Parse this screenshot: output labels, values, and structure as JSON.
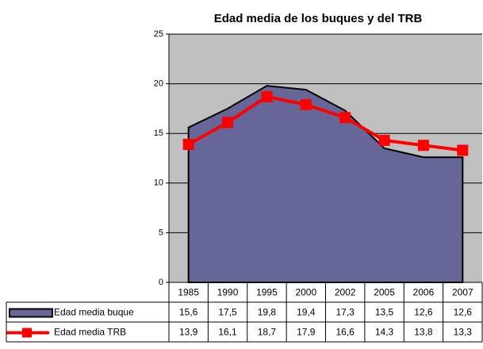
{
  "chart_data": {
    "type": "area",
    "title": "Edad media de los buques y del TRB",
    "categories": [
      "1985",
      "1990",
      "1995",
      "2000",
      "2002",
      "2005",
      "2006",
      "2007"
    ],
    "series": [
      {
        "name": "Edad media buque",
        "type": "area",
        "color": "#666699",
        "values": [
          15.6,
          17.5,
          19.8,
          19.4,
          17.3,
          13.5,
          12.6,
          12.6
        ],
        "value_labels": [
          "15,6",
          "17,5",
          "19,8",
          "19,4",
          "17,3",
          "13,5",
          "12,6",
          "12,6"
        ]
      },
      {
        "name": "Edad media TRB",
        "type": "line",
        "color": "#ff0000",
        "values": [
          13.9,
          16.1,
          18.7,
          17.9,
          16.6,
          14.3,
          13.8,
          13.3
        ],
        "value_labels": [
          "13,9",
          "16,1",
          "18,7",
          "17,9",
          "16,6",
          "14,3",
          "13,8",
          "13,3"
        ]
      }
    ],
    "ylim": [
      0,
      25
    ],
    "yticks": [
      0,
      5,
      10,
      15,
      20,
      25
    ],
    "grid": true,
    "plot_background": "#c0c0c0"
  }
}
